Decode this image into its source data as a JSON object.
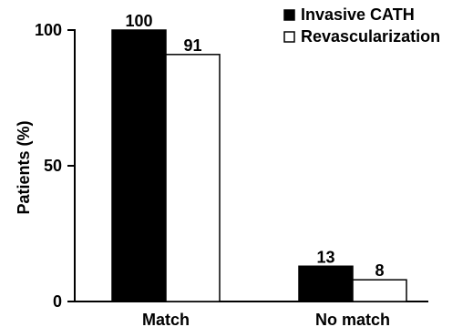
{
  "chart_data": {
    "type": "bar",
    "categories": [
      "Match",
      "No match"
    ],
    "series": [
      {
        "name": "Invasive CATH",
        "values": [
          100,
          13
        ],
        "color": "#000000",
        "fill": "solid"
      },
      {
        "name": "Revascularization",
        "values": [
          91,
          8
        ],
        "color": "#ffffff",
        "fill": "hollow"
      }
    ],
    "data_labels": [
      [
        "100",
        "13"
      ],
      [
        "91",
        "8"
      ]
    ],
    "ylabel": "Patients (%)",
    "xlabel": "",
    "title": "",
    "ylim": [
      0,
      100
    ],
    "yticks": [
      0,
      50,
      100
    ],
    "ytick_labels": [
      "0",
      "50",
      "100"
    ],
    "grid": false,
    "legend_position": "top-right"
  }
}
